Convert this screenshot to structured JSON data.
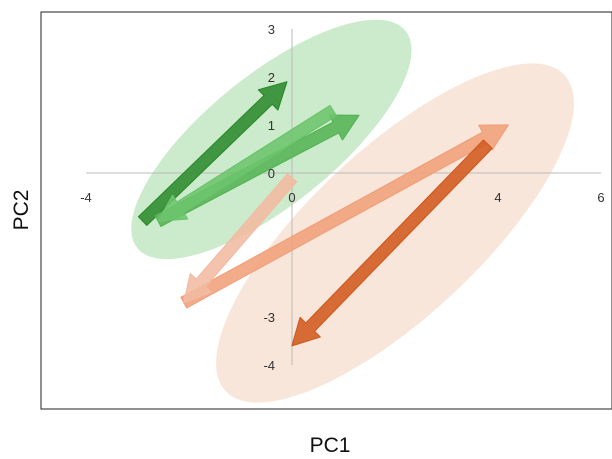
{
  "chart_data": {
    "type": "scatter",
    "title": "",
    "xlabel": "PC1",
    "ylabel": "PC2",
    "xlim": [
      -4,
      6
    ],
    "ylim": [
      -4,
      3
    ],
    "x_ticks": [
      -4,
      0,
      4,
      6
    ],
    "y_ticks": [
      3,
      2,
      1,
      0,
      -3,
      -4
    ],
    "grid": false,
    "legend": "none",
    "groups": [
      {
        "color": "#8fd08f",
        "ellipse": {
          "center": [
            -0.4,
            0.7
          ],
          "semi_axes": [
            3.35,
            1.35
          ],
          "rotation_deg": 39
        },
        "arrows": [
          {
            "from": [
              -2.9,
              -1.0
            ],
            "to": [
              -0.1,
              1.9
            ],
            "color": "#2e8b2e"
          },
          {
            "from": [
              -2.6,
              -1.0
            ],
            "to": [
              1.3,
              1.2
            ],
            "color": "#55b455"
          },
          {
            "from": [
              0.8,
              1.3
            ],
            "to": [
              -2.6,
              -1.0
            ],
            "color": "#6cc46c"
          }
        ]
      },
      {
        "color": "#f2c7ac",
        "ellipse": {
          "center": [
            2.0,
            -1.25
          ],
          "semi_axes": [
            4.5,
            1.75
          ],
          "rotation_deg": 43
        },
        "arrows": [
          {
            "from": [
              -2.1,
              -2.7
            ],
            "to": [
              4.2,
              1.0
            ],
            "color": "#f0a07a"
          },
          {
            "from": [
              3.8,
              0.6
            ],
            "to": [
              0.0,
              -3.6
            ],
            "color": "#d15a1f"
          },
          {
            "from": [
              0.0,
              -0.1
            ],
            "to": [
              -2.1,
              -2.7
            ],
            "color": "#f2bba2"
          }
        ]
      }
    ]
  }
}
